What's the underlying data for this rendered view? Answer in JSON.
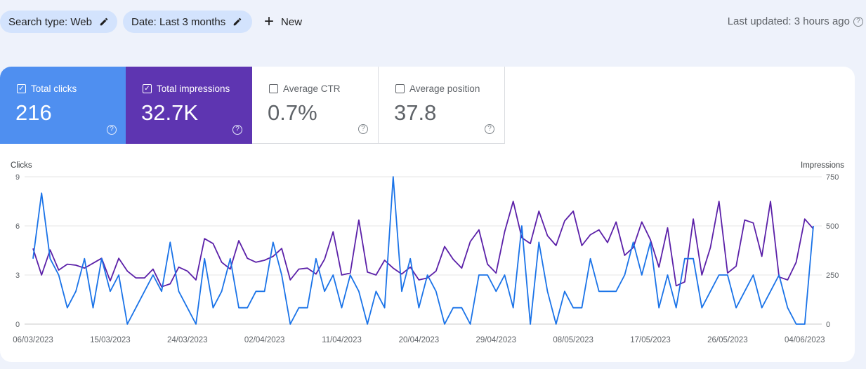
{
  "filters": {
    "search_type": "Search type: Web",
    "date": "Date: Last 3 months",
    "new_label": "New"
  },
  "last_updated": "Last updated: 3 hours ago",
  "metrics": [
    {
      "label": "Total clicks",
      "value": "216",
      "checked": true,
      "color": "#4f8ff0"
    },
    {
      "label": "Total impressions",
      "value": "32.7K",
      "checked": true,
      "color": "#5e35b1"
    },
    {
      "label": "Average CTR",
      "value": "0.7%",
      "checked": false
    },
    {
      "label": "Average position",
      "value": "37.8",
      "checked": false
    }
  ],
  "chart_data": {
    "type": "line",
    "left_axis_label": "Clicks",
    "right_axis_label": "Impressions",
    "left_ticks": [
      "0",
      "3",
      "6",
      "9"
    ],
    "right_ticks": [
      "0",
      "250",
      "500",
      "750"
    ],
    "left_ylim": [
      0,
      9
    ],
    "right_ylim": [
      0,
      750
    ],
    "x_tick_labels": [
      "06/03/2023",
      "15/03/2023",
      "24/03/2023",
      "02/04/2023",
      "11/04/2023",
      "20/04/2023",
      "29/04/2023",
      "08/05/2023",
      "17/05/2023",
      "26/05/2023",
      "04/06/2023"
    ],
    "x_tick_indices": [
      0,
      9,
      18,
      27,
      36,
      45,
      54,
      63,
      72,
      81,
      90
    ],
    "series": [
      {
        "name": "Clicks",
        "axis": "left",
        "color": "#1a73e8",
        "values": [
          4,
          8,
          4,
          3,
          1,
          2,
          4,
          1,
          4,
          2,
          3,
          0,
          1,
          2,
          3,
          2,
          5,
          2,
          1,
          0,
          4,
          1,
          2,
          4,
          1,
          1,
          2,
          2,
          5,
          3,
          0,
          1,
          1,
          4,
          2,
          3,
          1,
          3,
          2,
          0,
          2,
          1,
          9,
          2,
          4,
          1,
          3,
          2,
          0,
          1,
          1,
          0,
          3,
          3,
          2,
          3,
          1,
          6,
          0,
          5,
          2,
          0,
          2,
          1,
          1,
          4,
          2,
          2,
          2,
          3,
          5,
          3,
          5,
          1,
          3,
          1,
          4,
          4,
          1,
          2,
          3,
          3,
          1,
          2,
          3,
          1,
          2,
          3,
          1,
          0,
          0,
          6
        ]
      },
      {
        "name": "Impressions",
        "axis": "left_scaled_right",
        "color": "#5b20a8",
        "values": [
          385,
          250,
          378,
          275,
          305,
          300,
          285,
          310,
          335,
          220,
          335,
          270,
          235,
          235,
          280,
          190,
          205,
          290,
          270,
          225,
          435,
          410,
          315,
          280,
          425,
          335,
          315,
          325,
          345,
          385,
          225,
          280,
          285,
          255,
          330,
          470,
          250,
          260,
          530,
          265,
          250,
          325,
          285,
          255,
          290,
          225,
          235,
          270,
          395,
          330,
          285,
          420,
          480,
          305,
          260,
          470,
          625,
          440,
          410,
          575,
          450,
          400,
          525,
          575,
          400,
          455,
          480,
          415,
          520,
          350,
          390,
          520,
          430,
          290,
          490,
          195,
          215,
          535,
          250,
          390,
          625,
          260,
          295,
          530,
          515,
          345,
          625,
          240,
          225,
          315,
          535,
          485
        ]
      }
    ]
  }
}
